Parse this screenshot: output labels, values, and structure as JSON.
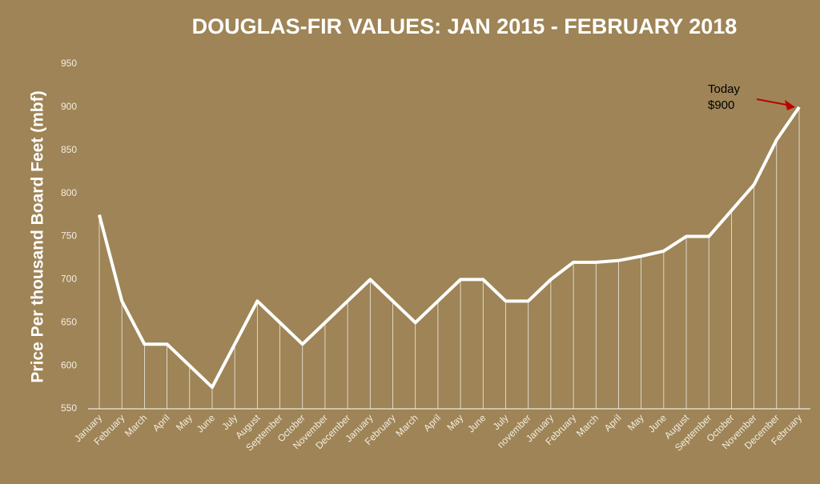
{
  "chart_data": {
    "type": "line",
    "title": "DOUGLAS-FIR VALUES: JAN 2015 - FEBRUARY 2018",
    "y_label": "Price Per thousand Board Feet (mbf)",
    "categories": [
      "January",
      "February",
      "March",
      "April",
      "May",
      "June",
      "July",
      "August",
      "September",
      "October",
      "November",
      "December",
      "January",
      "February",
      "March",
      "April",
      "May",
      "June",
      "July",
      "november",
      "January",
      "February",
      "March",
      "April",
      "May",
      "June",
      "August",
      "September",
      "October",
      "November",
      "December",
      "February"
    ],
    "series": [
      {
        "name": "Price",
        "color": "#ffffff",
        "values": [
          775,
          675,
          625,
          625,
          600,
          575,
          625,
          675,
          650,
          625,
          650,
          675,
          700,
          675,
          650,
          675,
          700,
          700,
          675,
          675,
          700,
          720,
          720,
          722,
          727,
          733,
          750,
          750,
          780,
          810,
          862,
          900
        ]
      }
    ],
    "ylim": [
      550,
      950
    ],
    "yticks": [
      550,
      600,
      650,
      700,
      750,
      800,
      850,
      900,
      950
    ],
    "drop_lines": true,
    "annotation": {
      "lines": [
        "Today",
        "$900"
      ],
      "arrow_color": "#c00000"
    }
  }
}
